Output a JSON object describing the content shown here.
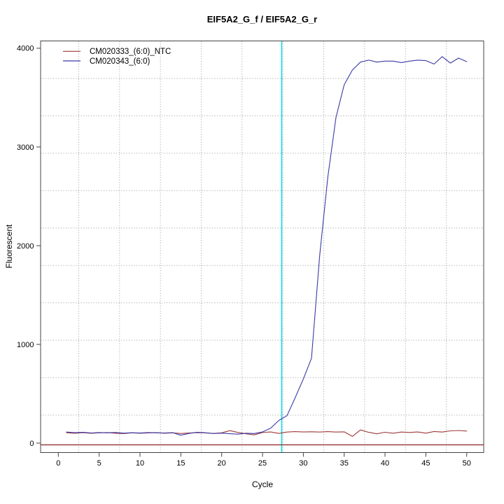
{
  "window": {
    "title": "EIF5A2_G_f / EIF5A2_G_r"
  },
  "chart_data": {
    "type": "line",
    "title": "EIF5A2_G_f / EIF5A2_G_r",
    "xlabel": "Cycle",
    "ylabel": "Fluorescent",
    "x_ticks": [
      0,
      5,
      10,
      15,
      20,
      25,
      30,
      35,
      40,
      45,
      50
    ],
    "y_ticks": [
      0,
      1000,
      2000,
      3000,
      4000
    ],
    "xlim": [
      -2.17,
      52.08
    ],
    "ylim": [
      -95.7,
      4074
    ],
    "grid": {
      "on": true,
      "style": "dotted",
      "color": "#a9a9a9",
      "v_lines_at_cycles": [
        2.5,
        7.5,
        12.5,
        17.5,
        22.5,
        27.5,
        32.5,
        37.5,
        42.5,
        47.5
      ],
      "h_divisions": 11
    },
    "legend_position": "top-left",
    "x": [
      1,
      2,
      3,
      4,
      5,
      6,
      7,
      8,
      9,
      10,
      11,
      12,
      13,
      14,
      15,
      16,
      17,
      18,
      19,
      20,
      21,
      22,
      23,
      24,
      25,
      26,
      27,
      28,
      29,
      30,
      31,
      32,
      33,
      34,
      35,
      36,
      37,
      38,
      39,
      40,
      41,
      42,
      43,
      44,
      45,
      46,
      47,
      48,
      49,
      50
    ],
    "series": [
      {
        "name": "CM020333_(6:0)_NTC",
        "color": "#9e3a3a",
        "values": [
          105,
          100,
          106,
          99,
          104,
          107,
          100,
          96,
          104,
          99,
          103,
          106,
          100,
          104,
          97,
          102,
          106,
          103,
          98,
          104,
          126,
          108,
          94,
          84,
          108,
          113,
          98,
          112,
          116,
          113,
          115,
          112,
          116,
          112,
          114,
          68,
          133,
          109,
          94,
          110,
          100,
          112,
          108,
          113,
          101,
          118,
          112,
          124,
          128,
          122
        ]
      },
      {
        "name": "CM020343_(6:0)",
        "color": "#3a3aa8",
        "values": [
          112,
          106,
          109,
          103,
          107,
          104,
          108,
          101,
          105,
          102,
          107,
          104,
          103,
          106,
          80,
          98,
          109,
          105,
          97,
          101,
          95,
          91,
          100,
          97,
          113,
          152,
          230,
          278,
          460,
          650,
          860,
          1900,
          2700,
          3300,
          3630,
          3780,
          3860,
          3880,
          3860,
          3870,
          3870,
          3855,
          3870,
          3880,
          3875,
          3840,
          3915,
          3850,
          3900,
          3865
        ]
      }
    ],
    "ct_line": {
      "x": 27.35,
      "color": "#00dde6"
    },
    "threshold_line": {
      "y": 0,
      "color": "#8b2323"
    }
  },
  "colors": {
    "background": "#ffffff",
    "box": "#444444",
    "grid": "#a9a9a9",
    "text": "#000000",
    "ntc_series": "#9e3a3a",
    "sample_series": "#3a3aa8",
    "ct_marker": "#00dde6",
    "threshold": "#8b2323"
  }
}
